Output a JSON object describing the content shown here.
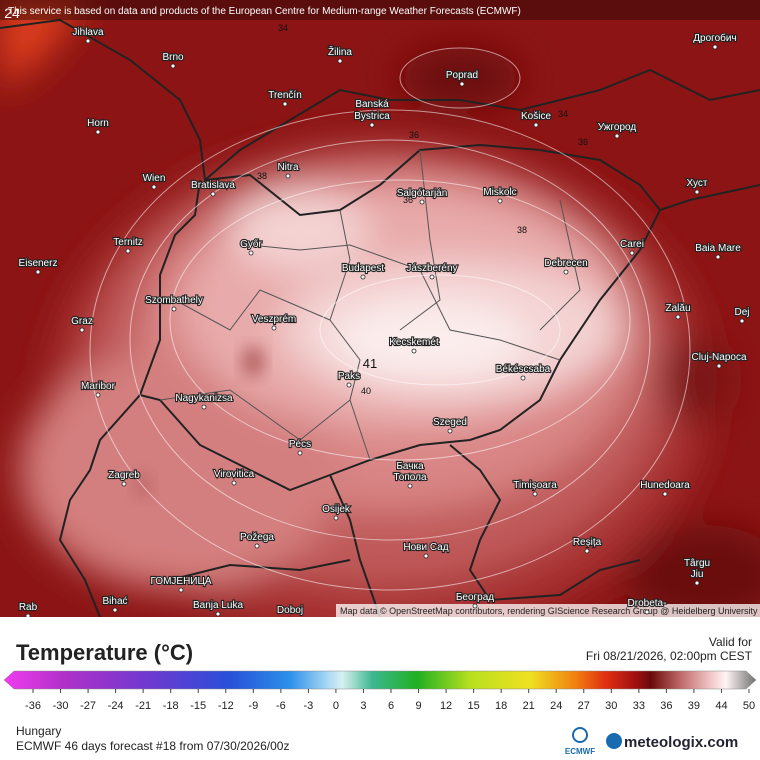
{
  "header": {
    "notice": "This service is based on data and products of the European Centre for Medium-range Weather Forecasts (ECMWF)"
  },
  "map": {
    "cities": [
      "Jihlava",
      "Brno",
      "Žilina",
      "Poprad",
      "Дрогобич",
      "Trenčín",
      "Banská",
      "Bystrica",
      "Košice",
      "Ужгород",
      "Horn",
      "Nitra",
      "Wien",
      "Bratislava",
      "Salgótarján",
      "Miskolc",
      "Хуст",
      "Ternitz",
      "Győr",
      "Carei",
      "Baia Mare",
      "Eisenerz",
      "Budapest",
      "Jászberény",
      "Debrecen",
      "Szombathely",
      "Graz",
      "Veszprém",
      "Zalău",
      "Dej",
      "Kecskemét",
      "Cluj-Napoca",
      "Paks",
      "Békéscsaba",
      "Maribor",
      "Nagykanizsa",
      "Szeged",
      "Pécs",
      "Zagreb",
      "Virovitica",
      "Бачка",
      "Топола",
      "Timișoara",
      "Hunedoara",
      "Osijek",
      "Požega",
      "Нови Сад",
      "Reșița",
      "Târgu",
      "Jiu",
      "ГОМЈЕНИЦА",
      "Bihać",
      "Banja Luka",
      "Doboj",
      "Београд",
      "Drobeta-",
      "Rab"
    ],
    "isolines": [
      24,
      34,
      34,
      36,
      36,
      36,
      38,
      38,
      40,
      41
    ],
    "attribution": "Map data © OpenStreetMap contributors, rendering GIScience Research Group @ Heidelberg University"
  },
  "legend": {
    "title": "Temperature (°C)",
    "ticks": [
      -36,
      -30,
      -27,
      -24,
      -21,
      -18,
      -15,
      -12,
      -9,
      -6,
      -3,
      0,
      3,
      6,
      9,
      12,
      15,
      18,
      21,
      24,
      27,
      30,
      33,
      36,
      39,
      44,
      50
    ]
  },
  "footer": {
    "valid_label": "Valid for",
    "valid_time": "Fri 08/21/2026, 02:00pm CEST",
    "region": "Hungary",
    "forecast": "ECMWF 46 days forecast #18 from  07/30/2026/00z",
    "ecmwf_logo": "ECMWF",
    "brand": "meteologix.com"
  }
}
